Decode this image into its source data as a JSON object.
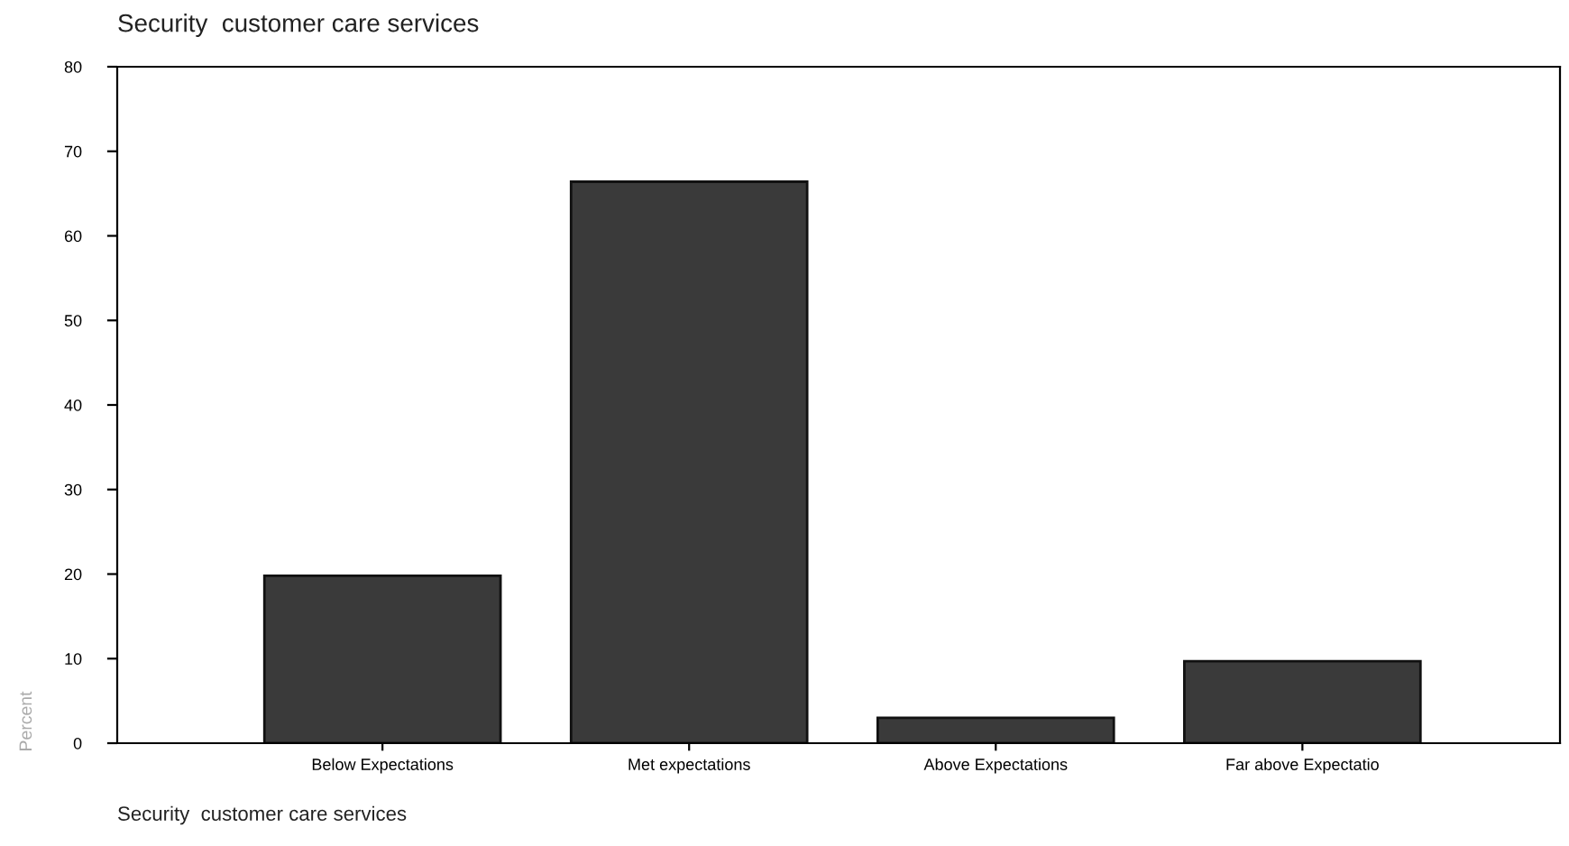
{
  "chart_data": {
    "type": "bar",
    "title": "Security  customer care services",
    "ylabel": "Percent",
    "categories": [
      "Below Expectations",
      "Met expectations",
      "Above Expectations",
      "Far above Expectatio"
    ],
    "values": [
      19.8,
      66.4,
      3.0,
      9.7
    ],
    "color": "#3a3a3a",
    "ylim": [
      0,
      80
    ],
    "yticks": [
      0,
      10,
      20,
      30,
      40,
      50,
      60,
      70,
      80
    ],
    "grid": false,
    "legend": false,
    "annotations": [
      "Security  customer care services"
    ]
  }
}
